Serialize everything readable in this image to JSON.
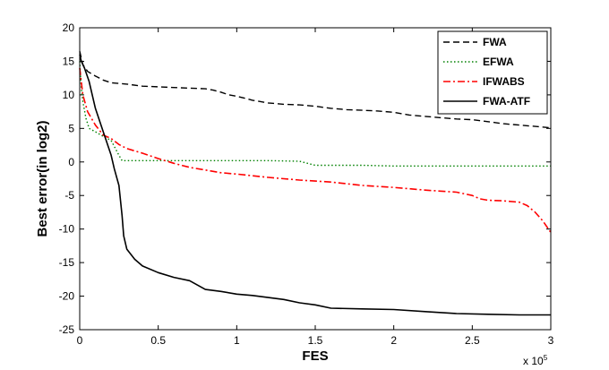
{
  "chart_data": {
    "type": "line",
    "xlabel": "FES",
    "ylabel": "Best error(in log2)",
    "x_multiplier_label": "x 10",
    "x_multiplier_exp": "5",
    "xlim": [
      0,
      3
    ],
    "ylim": [
      -25,
      20
    ],
    "x_ticks": [
      "0",
      "0.5",
      "1",
      "1.5",
      "2",
      "2.5",
      "3"
    ],
    "y_ticks": [
      "20",
      "15",
      "10",
      "5",
      "0",
      "-5",
      "-10",
      "-15",
      "-20",
      "-25"
    ],
    "grid": false,
    "legend_position": "top-right",
    "series": [
      {
        "name": "FWA",
        "color": "#000000",
        "dash": "dashed",
        "x": [
          0,
          0.02,
          0.05,
          0.1,
          0.15,
          0.2,
          0.3,
          0.4,
          0.5,
          0.6,
          0.7,
          0.8,
          0.85,
          0.9,
          0.95,
          1.0,
          1.05,
          1.1,
          1.2,
          1.3,
          1.4,
          1.5,
          1.6,
          1.7,
          1.8,
          1.9,
          2.0,
          2.1,
          2.2,
          2.3,
          2.4,
          2.5,
          2.6,
          2.7,
          2.8,
          2.9,
          3.0
        ],
        "y": [
          16.5,
          14.5,
          13.5,
          12.8,
          12.2,
          11.8,
          11.6,
          11.3,
          11.2,
          11.1,
          11.0,
          10.9,
          10.7,
          10.4,
          10.0,
          9.8,
          9.5,
          9.2,
          8.8,
          8.6,
          8.5,
          8.3,
          8.0,
          7.8,
          7.7,
          7.6,
          7.4,
          7.0,
          6.8,
          6.6,
          6.4,
          6.3,
          6.0,
          5.7,
          5.5,
          5.3,
          5.1
        ]
      },
      {
        "name": "EFWA",
        "color": "#008000",
        "dash": "dotted",
        "x": [
          0,
          0.01,
          0.02,
          0.04,
          0.06,
          0.1,
          0.15,
          0.2,
          0.25,
          0.27,
          0.3,
          0.4,
          0.6,
          0.8,
          1.0,
          1.2,
          1.4,
          1.5,
          1.6,
          1.8,
          2.0,
          2.5,
          3.0
        ],
        "y": [
          15.0,
          11.0,
          9.0,
          6.5,
          5.0,
          4.5,
          3.8,
          3.2,
          1.0,
          0.2,
          0.2,
          0.2,
          0.2,
          0.2,
          0.2,
          0.2,
          0.1,
          -0.5,
          -0.5,
          -0.5,
          -0.6,
          -0.6,
          -0.6
        ]
      },
      {
        "name": "IFWABS",
        "color": "#ff0000",
        "dash": "dashdot",
        "x": [
          0,
          0.02,
          0.05,
          0.1,
          0.15,
          0.2,
          0.25,
          0.3,
          0.4,
          0.5,
          0.6,
          0.7,
          0.8,
          0.9,
          1.0,
          1.2,
          1.4,
          1.6,
          1.8,
          2.0,
          2.2,
          2.4,
          2.5,
          2.55,
          2.6,
          2.7,
          2.8,
          2.85,
          2.9,
          2.95,
          3.0
        ],
        "y": [
          14.0,
          10.0,
          7.5,
          5.5,
          4.0,
          3.5,
          2.6,
          2.0,
          1.3,
          0.5,
          -0.2,
          -0.8,
          -1.2,
          -1.6,
          -1.8,
          -2.3,
          -2.7,
          -3.0,
          -3.5,
          -3.8,
          -4.2,
          -4.5,
          -5.0,
          -5.5,
          -5.7,
          -5.8,
          -6.0,
          -6.5,
          -7.5,
          -8.8,
          -10.5
        ]
      },
      {
        "name": "FWA-ATF",
        "color": "#000000",
        "dash": "solid",
        "x": [
          0,
          0.01,
          0.03,
          0.06,
          0.1,
          0.15,
          0.2,
          0.22,
          0.25,
          0.27,
          0.28,
          0.3,
          0.35,
          0.4,
          0.5,
          0.6,
          0.7,
          0.8,
          0.9,
          1.0,
          1.1,
          1.2,
          1.3,
          1.4,
          1.5,
          1.6,
          1.8,
          2.0,
          2.2,
          2.4,
          2.6,
          2.8,
          3.0
        ],
        "y": [
          16.0,
          15.0,
          14.0,
          12.0,
          8.0,
          4.5,
          1.0,
          -1.0,
          -3.5,
          -8.0,
          -11.0,
          -13.0,
          -14.5,
          -15.5,
          -16.5,
          -17.2,
          -17.7,
          -19.0,
          -19.3,
          -19.7,
          -19.9,
          -20.2,
          -20.5,
          -21.0,
          -21.3,
          -21.8,
          -21.9,
          -22.0,
          -22.3,
          -22.6,
          -22.7,
          -22.8,
          -22.8
        ]
      }
    ]
  }
}
